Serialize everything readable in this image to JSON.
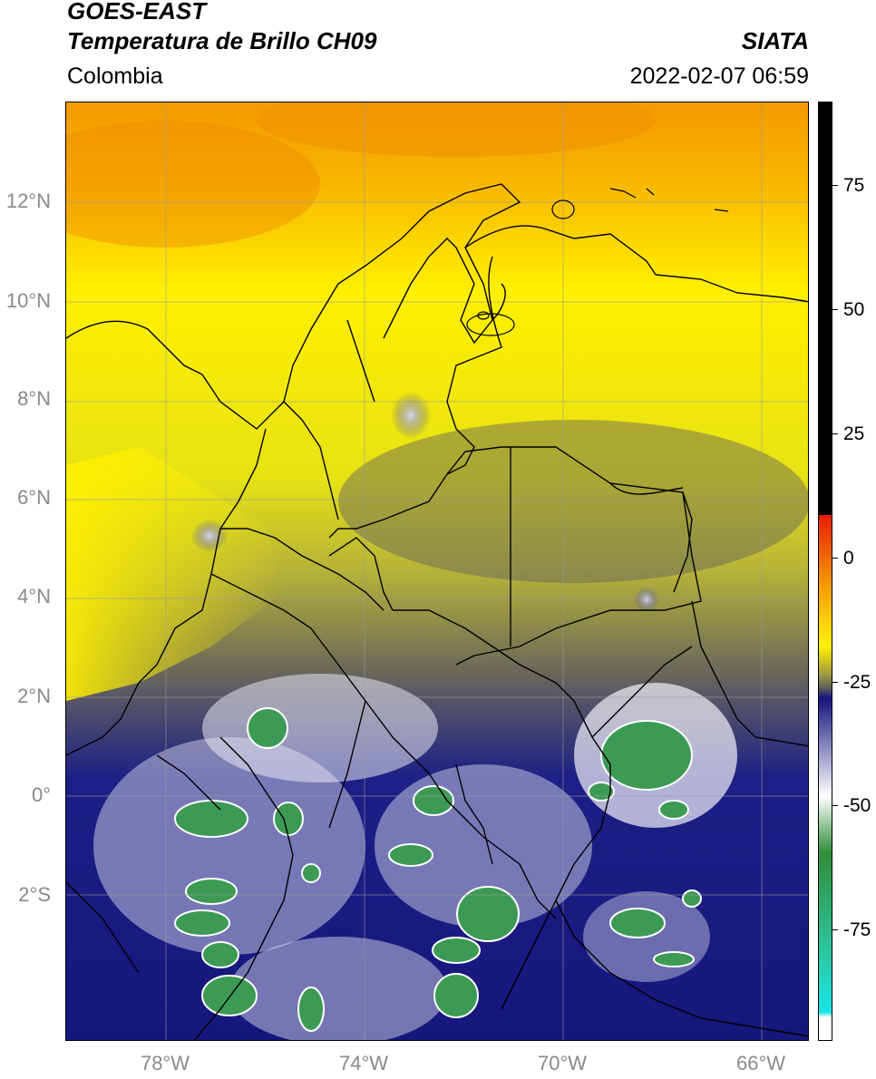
{
  "header": {
    "satellite": "GOES-EAST",
    "product": "Temperatura de Brillo CH09",
    "region": "Colombia",
    "agency": "SIATA",
    "datetime": "2022-02-07 06:59"
  },
  "map": {
    "lat_labels": [
      "12°N",
      "10°N",
      "8°N",
      "6°N",
      "4°N",
      "2°N",
      "0°",
      "2°S"
    ],
    "lon_labels": [
      "78°W",
      "74°W",
      "70°W",
      "66°W"
    ]
  },
  "colorbar": {
    "ticks": [
      "75",
      "50",
      "25",
      "0",
      "-25",
      "-50",
      "-75"
    ],
    "colors": {
      "black": "#000000",
      "red": "#e61e00",
      "orange": "#f6a200",
      "yellow": "#fff200",
      "olive": "#a09a40",
      "gray": "#5c5c5c",
      "navy": "#14147e",
      "white": "#ffffff",
      "green": "#2f8e3a",
      "teal": "#2ec39a",
      "cyan": "#18e6e6"
    }
  }
}
